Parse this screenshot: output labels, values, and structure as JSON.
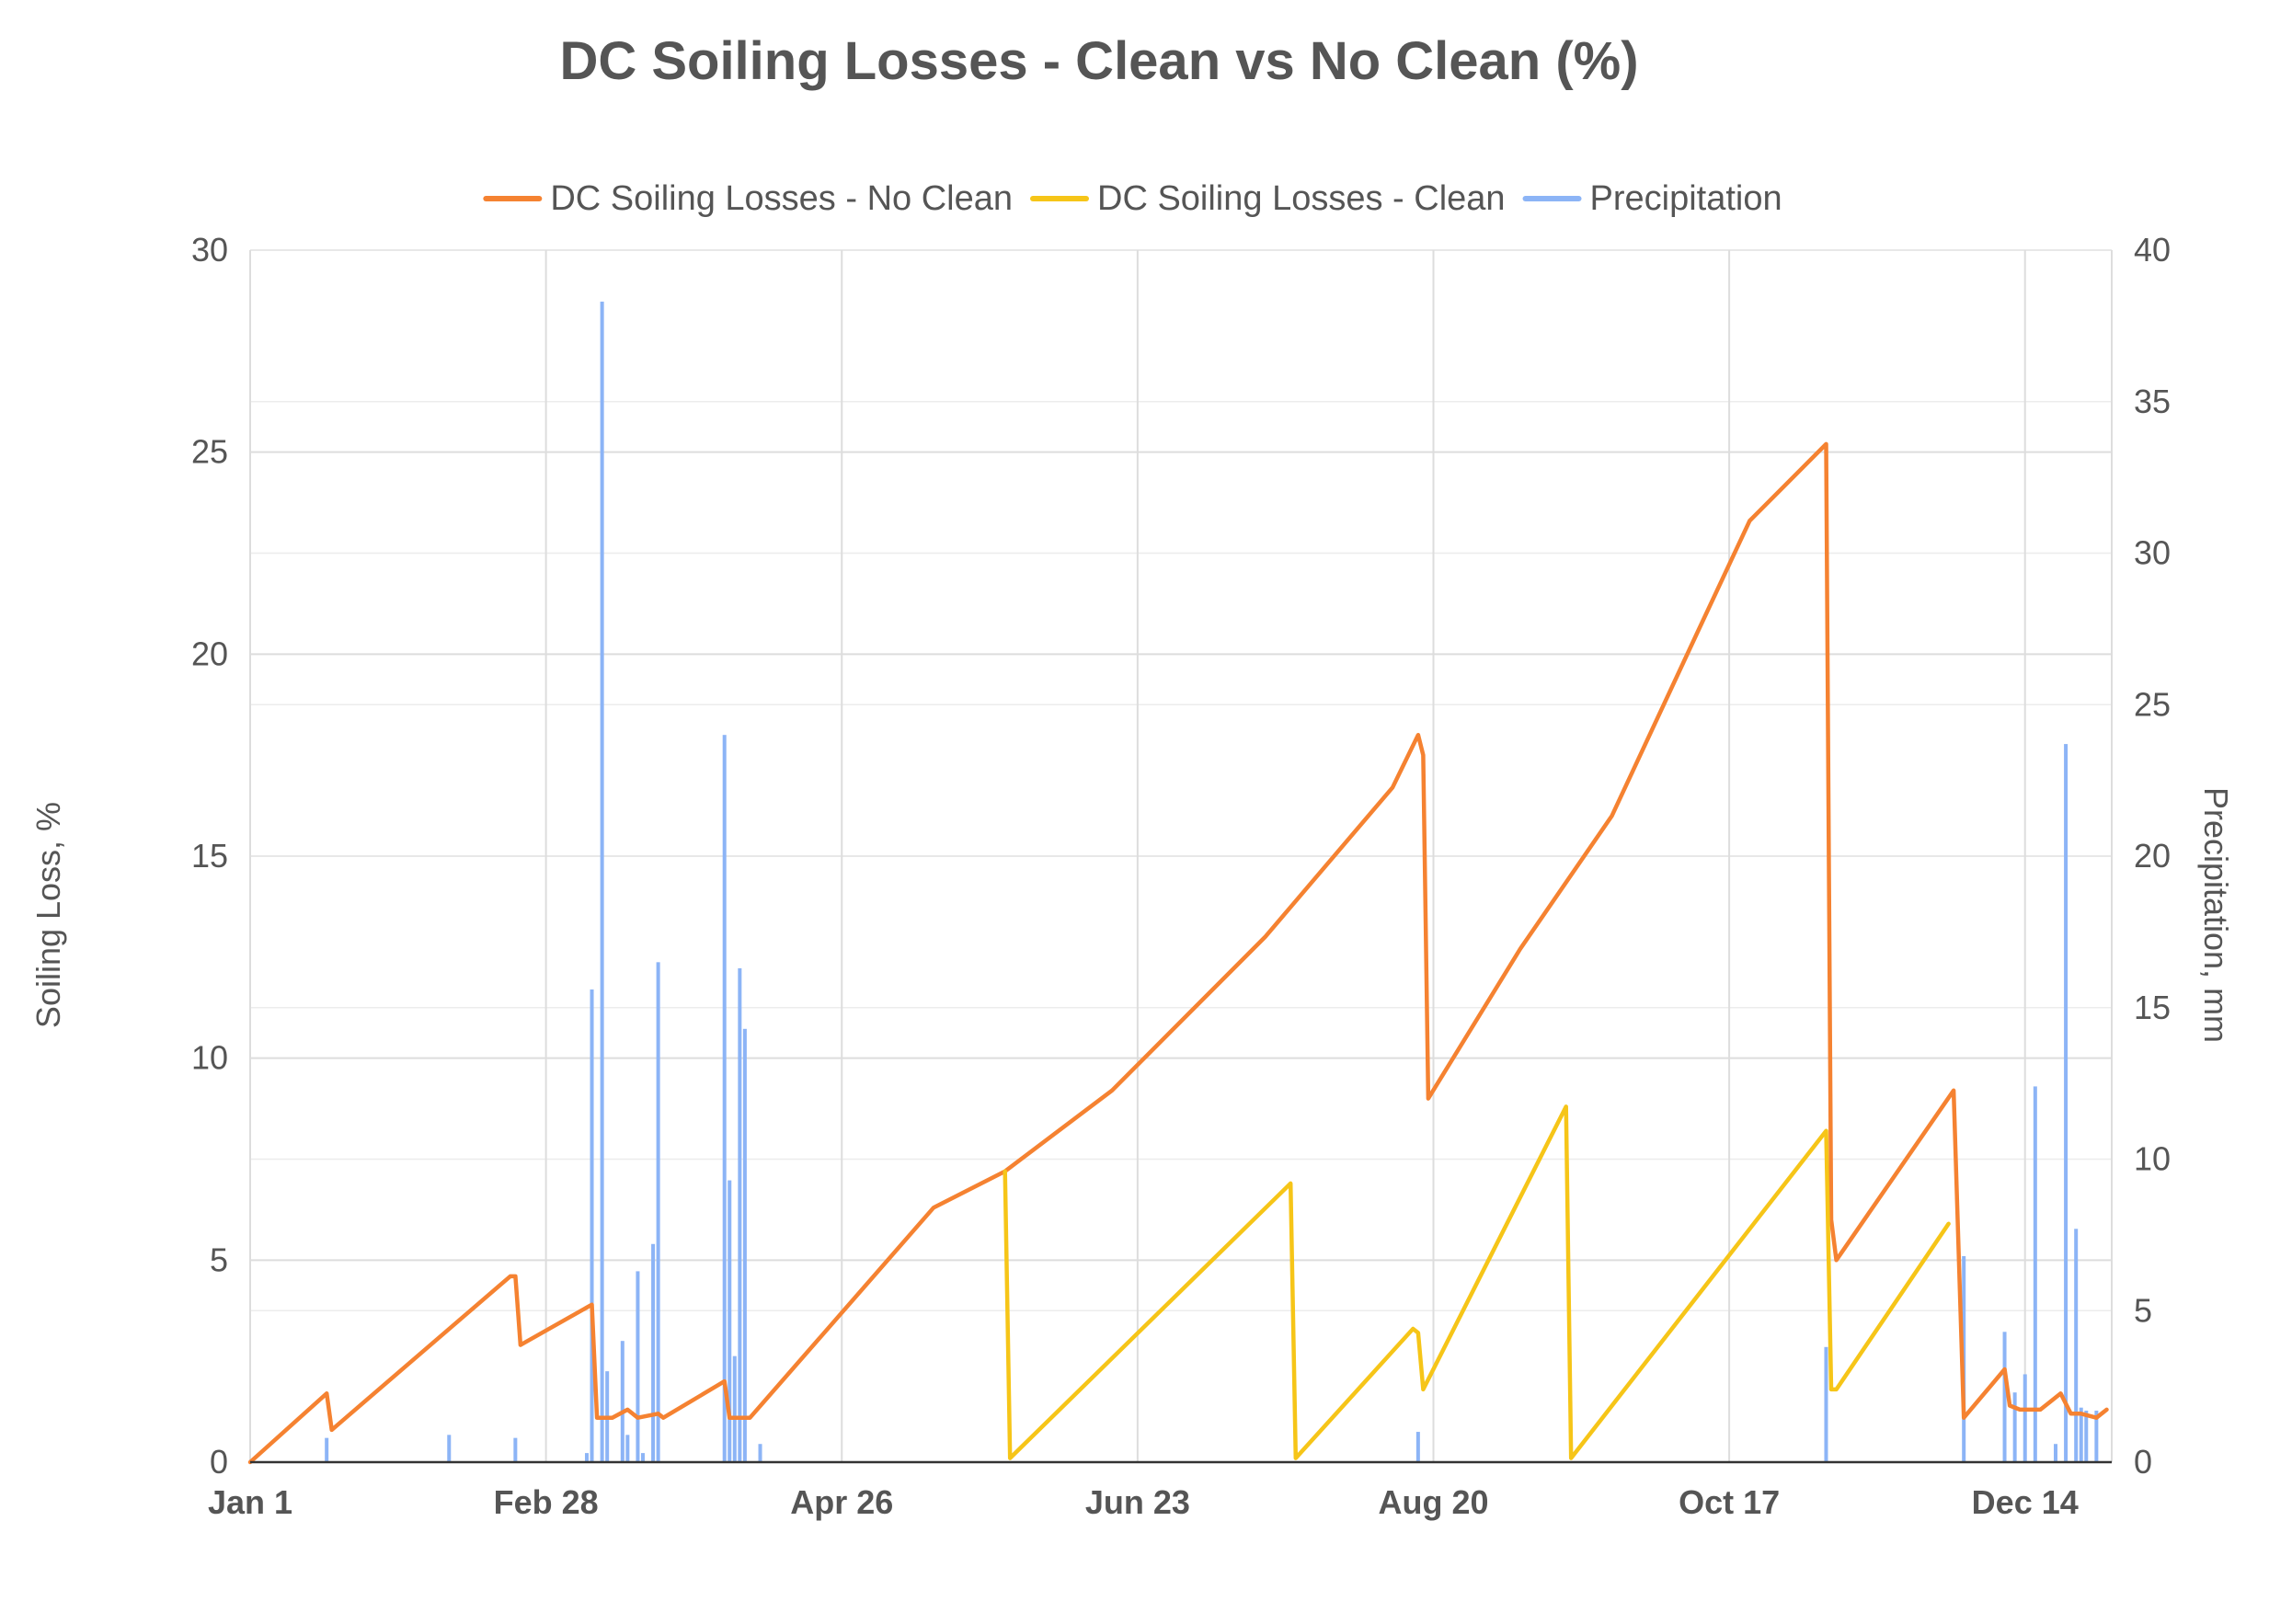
{
  "chart_data": {
    "type": "line",
    "title": "DC Soiling Losses - Clean vs No Clean (%)",
    "ylabel": "Soiling Loss, %",
    "y2label": "Precipitation, mm",
    "ylim": [
      0,
      30
    ],
    "y2lim": [
      0,
      40
    ],
    "yticks": [
      0,
      5,
      10,
      15,
      20,
      25,
      30
    ],
    "y2ticks": [
      0,
      5,
      10,
      15,
      20,
      25,
      30,
      35,
      40
    ],
    "xlim": [
      1,
      365
    ],
    "xticks": [
      {
        "day": 1,
        "label": "Jan 1"
      },
      {
        "day": 59,
        "label": "Feb 28"
      },
      {
        "day": 117,
        "label": "Apr 26"
      },
      {
        "day": 175,
        "label": "Jun 23"
      },
      {
        "day": 233,
        "label": "Aug 20"
      },
      {
        "day": 291,
        "label": "Oct 17"
      },
      {
        "day": 349,
        "label": "Dec 14"
      }
    ],
    "grid": true,
    "legend_position": "top",
    "series": [
      {
        "name": "DC Soiling Losses - No Clean",
        "color": "#f58231",
        "axis": "left",
        "points": [
          [
            1,
            0
          ],
          [
            16,
            1.7
          ],
          [
            17,
            0.8
          ],
          [
            52,
            4.6
          ],
          [
            53,
            4.6
          ],
          [
            54,
            2.9
          ],
          [
            68,
            3.9
          ],
          [
            69,
            1.1
          ],
          [
            72,
            1.1
          ],
          [
            75,
            1.3
          ],
          [
            77,
            1.1
          ],
          [
            81,
            1.2
          ],
          [
            82,
            1.1
          ],
          [
            94,
            2.0
          ],
          [
            95,
            1.1
          ],
          [
            99,
            1.1
          ],
          [
            135,
            6.3
          ],
          [
            149,
            7.2
          ],
          [
            170,
            9.2
          ],
          [
            200,
            13.0
          ],
          [
            225,
            16.7
          ],
          [
            230,
            18.0
          ],
          [
            231,
            17.5
          ],
          [
            232,
            9.0
          ],
          [
            250,
            12.7
          ],
          [
            268,
            16.0
          ],
          [
            285,
            20.6
          ],
          [
            295,
            23.3
          ],
          [
            310,
            25.2
          ],
          [
            311,
            6.0
          ],
          [
            312,
            5.0
          ],
          [
            335,
            9.2
          ],
          [
            337,
            1.1
          ],
          [
            345,
            2.3
          ],
          [
            346,
            1.4
          ],
          [
            348,
            1.3
          ],
          [
            350,
            1.3
          ],
          [
            352,
            1.3
          ],
          [
            356,
            1.7
          ],
          [
            358,
            1.2
          ],
          [
            360,
            1.2
          ],
          [
            363,
            1.1
          ],
          [
            365,
            1.3
          ]
        ]
      },
      {
        "name": "DC Soiling Losses - Clean",
        "color": "#f6c518",
        "axis": "left",
        "points": [
          [
            149,
            7.2
          ],
          [
            150,
            0.1
          ],
          [
            205,
            6.9
          ],
          [
            206,
            0.1
          ],
          [
            229,
            3.3
          ],
          [
            230,
            3.2
          ],
          [
            231,
            1.8
          ],
          [
            259,
            8.8
          ],
          [
            260,
            0.1
          ],
          [
            310,
            8.2
          ],
          [
            311,
            1.8
          ],
          [
            312,
            1.8
          ],
          [
            334,
            5.9
          ]
        ]
      },
      {
        "name": "Precipitation",
        "color": "#8cb4f6",
        "axis": "right",
        "bars": [
          [
            16,
            0.8
          ],
          [
            40,
            0.9
          ],
          [
            53,
            0.8
          ],
          [
            67,
            0.3
          ],
          [
            68,
            15.6
          ],
          [
            70,
            38.3
          ],
          [
            71,
            3.0
          ],
          [
            74,
            4.0
          ],
          [
            75,
            0.9
          ],
          [
            77,
            6.3
          ],
          [
            78,
            0.3
          ],
          [
            80,
            7.2
          ],
          [
            81,
            16.5
          ],
          [
            94,
            24.0
          ],
          [
            95,
            9.3
          ],
          [
            96,
            3.5
          ],
          [
            97,
            16.3
          ],
          [
            98,
            14.3
          ],
          [
            101,
            0.6
          ],
          [
            230,
            1.0
          ],
          [
            310,
            3.8
          ],
          [
            337,
            6.8
          ],
          [
            345,
            4.3
          ],
          [
            347,
            2.3
          ],
          [
            349,
            2.9
          ],
          [
            351,
            12.4
          ],
          [
            355,
            0.6
          ],
          [
            357,
            23.7
          ],
          [
            359,
            7.7
          ],
          [
            360,
            1.8
          ],
          [
            361,
            1.7
          ],
          [
            363,
            1.7
          ]
        ]
      }
    ]
  }
}
